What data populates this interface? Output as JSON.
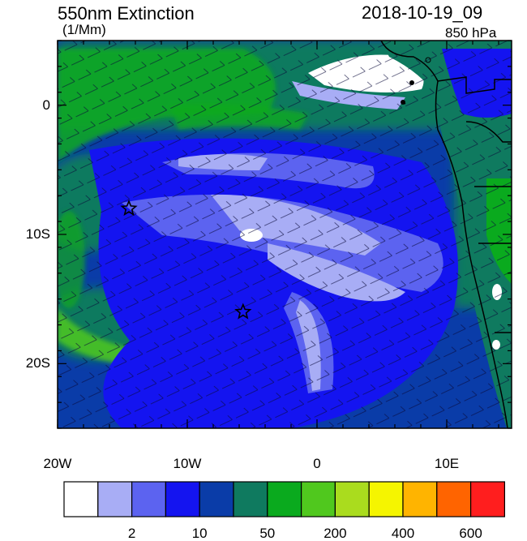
{
  "header": {
    "variable": "550nm Extinction",
    "units": "(1/Mm)",
    "datetime": "2018-10-19_09",
    "level": "850 hPa"
  },
  "map": {
    "lon_range": [
      -20,
      15
    ],
    "lat_range": [
      -25,
      5
    ],
    "x_ticks": [
      {
        "value": -20,
        "label": "20W"
      },
      {
        "value": -10,
        "label": "10W"
      },
      {
        "value": 0,
        "label": "0"
      },
      {
        "value": 10,
        "label": "10E"
      }
    ],
    "y_ticks": [
      {
        "value": 0,
        "label": "0"
      },
      {
        "value": -10,
        "label": "10S"
      },
      {
        "value": -20,
        "label": "20S"
      }
    ],
    "markers": [
      {
        "name": "star-marker-1",
        "lon": -14.5,
        "lat": -8.0
      },
      {
        "name": "star-marker-2",
        "lon": -5.7,
        "lat": -16.0
      }
    ]
  },
  "colorbar": {
    "colors": [
      "#ffffff",
      "#a8adf5",
      "#5c63f0",
      "#1414f0",
      "#0a3ca8",
      "#0f7a5f",
      "#0aaa1e",
      "#50c81e",
      "#aadc1e",
      "#f5f500",
      "#ffb400",
      "#ff6400",
      "#ff1e1e"
    ],
    "labels": [
      {
        "after_box": 1,
        "text": "2"
      },
      {
        "after_box": 3,
        "text": "10"
      },
      {
        "after_box": 5,
        "text": "50"
      },
      {
        "after_box": 7,
        "text": "200"
      },
      {
        "after_box": 9,
        "text": "400"
      },
      {
        "after_box": 11,
        "text": "600"
      }
    ]
  }
}
